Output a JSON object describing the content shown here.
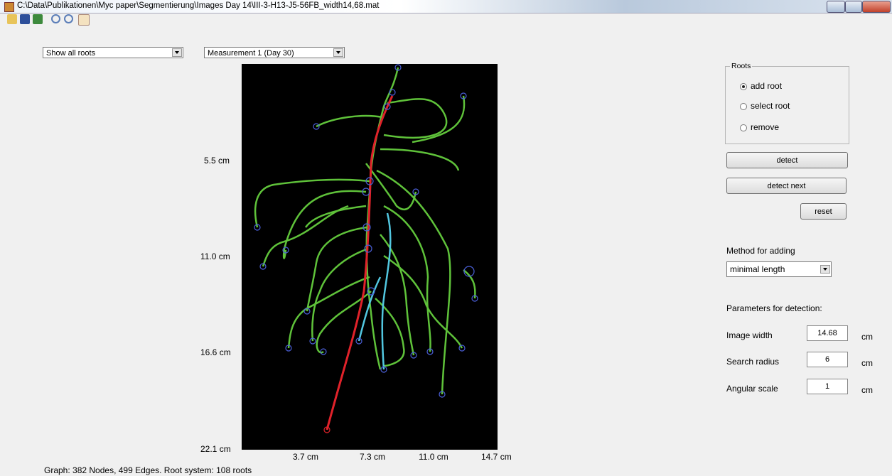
{
  "window": {
    "title": "C:\\Data\\Publikationen\\Myc paper\\Segmentierung\\Images Day 14\\III-3-H13-J5-56FB_width14,68.mat"
  },
  "dropdowns": {
    "view": "Show all roots",
    "measurement": "Measurement 1 (Day 30)"
  },
  "axes": {
    "yticks": [
      "5.5 cm",
      "11.0 cm",
      "16.6 cm",
      "22.1 cm"
    ],
    "xticks": [
      "3.7 cm",
      "7.3 cm",
      "11.0 cm",
      "14.7 cm"
    ]
  },
  "roots_panel": {
    "title": "Roots",
    "options": [
      "add root",
      "select root",
      "remove"
    ]
  },
  "buttons": {
    "detect": "detect",
    "detect_next": "detect next",
    "reset": "reset"
  },
  "method": {
    "label": "Method for adding",
    "value": "minimal length"
  },
  "parameters": {
    "title": "Parameters for detection:",
    "rows": [
      {
        "label": "Image width",
        "value": "14.68",
        "unit": "cm"
      },
      {
        "label": "Search radius",
        "value": "6",
        "unit": "cm"
      },
      {
        "label": "Angular scale",
        "value": "1",
        "unit": "cm"
      }
    ]
  },
  "status": "Graph: 382 Nodes, 499 Edges. Root system: 108 roots"
}
